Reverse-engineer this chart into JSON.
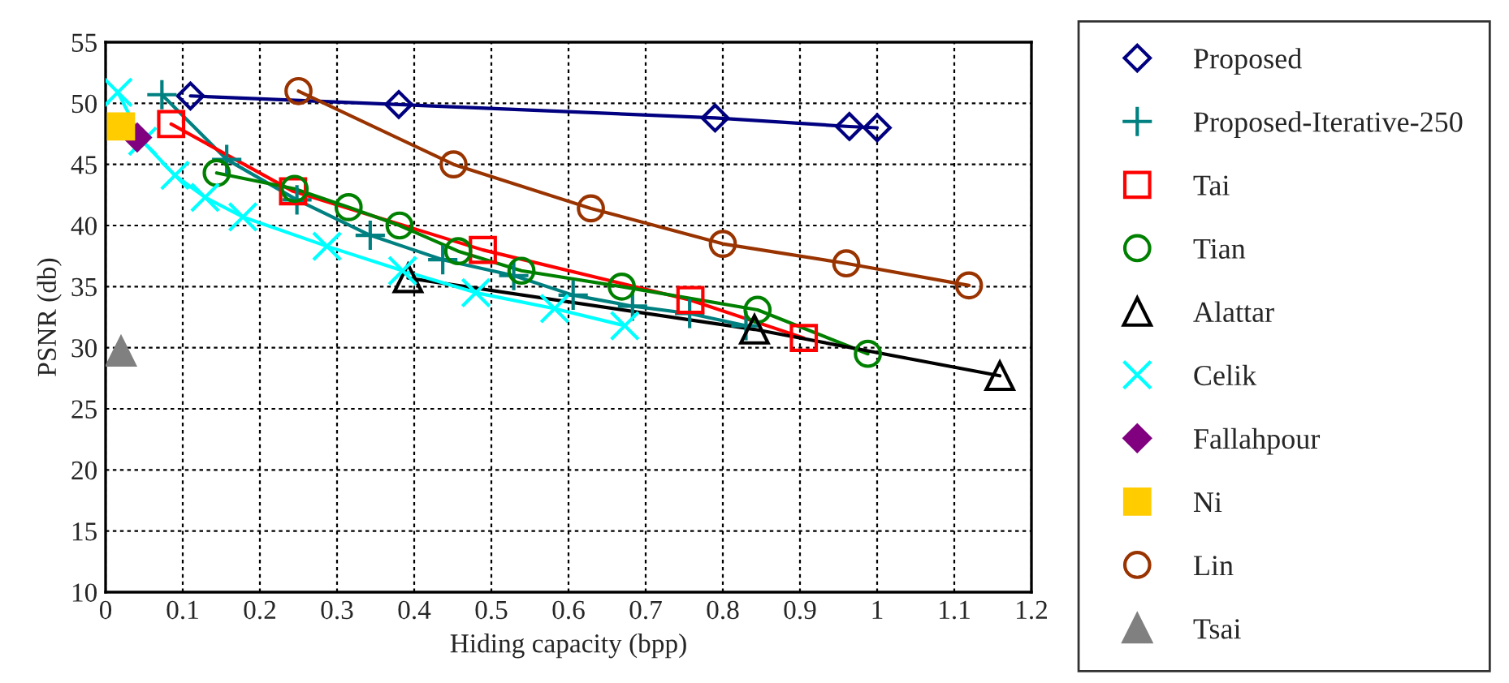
{
  "chart_data": {
    "type": "line",
    "xlabel": "Hiding capacity (bpp)",
    "ylabel": "PSNR (db)",
    "xlim": [
      0,
      1.2
    ],
    "ylim": [
      10,
      55
    ],
    "xticks": [
      0,
      0.1,
      0.2,
      0.3,
      0.4,
      0.5,
      0.6,
      0.7,
      0.8,
      0.9,
      1,
      1.1,
      1.2
    ],
    "yticks": [
      10,
      15,
      20,
      25,
      30,
      35,
      40,
      45,
      50,
      55
    ],
    "grid": true,
    "legend": "right",
    "line_style": "solid",
    "series": [
      {
        "name": "Proposed",
        "color": "#000080",
        "marker": "diamond",
        "x": [
          0.11,
          0.38,
          0.79,
          0.964,
          1.0
        ],
        "values": [
          50.6,
          49.9,
          48.8,
          48.1,
          48.0
        ]
      },
      {
        "name": "Proposed-Iterative-250",
        "color": "#008080",
        "marker": "plus",
        "x": [
          0.073,
          0.157,
          0.248,
          0.343,
          0.437,
          0.529,
          0.606,
          0.683,
          0.757,
          0.83
        ],
        "values": [
          50.7,
          45.4,
          42.1,
          39.2,
          37.2,
          35.9,
          34.3,
          33.4,
          32.8,
          31.8
        ]
      },
      {
        "name": "Tai",
        "color": "#ff0000",
        "marker": "square",
        "x": [
          0.085,
          0.243,
          0.489,
          0.758,
          0.905
        ],
        "values": [
          48.3,
          42.8,
          38.0,
          33.9,
          30.8
        ]
      },
      {
        "name": "Tian",
        "color": "#008000",
        "marker": "circle",
        "x": [
          0.144,
          0.245,
          0.315,
          0.381,
          0.457,
          0.539,
          0.669,
          0.845,
          0.988
        ],
        "values": [
          44.3,
          43.0,
          41.5,
          40.0,
          37.9,
          36.3,
          35.0,
          33.1,
          29.5
        ]
      },
      {
        "name": "Alattar",
        "color": "#000000",
        "marker": "triangle",
        "x": [
          0.392,
          0.841,
          1.159
        ],
        "values": [
          35.7,
          31.5,
          27.7
        ]
      },
      {
        "name": "Celik",
        "color": "#00ffff",
        "marker": "cross",
        "x": [
          0.016,
          0.048,
          0.09,
          0.129,
          0.178,
          0.287,
          0.385,
          0.48,
          0.582,
          0.673
        ],
        "values": [
          50.9,
          46.9,
          44.1,
          42.3,
          40.7,
          38.3,
          36.3,
          34.5,
          33.2,
          31.8
        ]
      },
      {
        "name": "Fallahpour",
        "type": "scatter",
        "color": "#800080",
        "marker": "diamond",
        "x": [
          0.041
        ],
        "values": [
          47.2
        ]
      },
      {
        "name": "Ni",
        "type": "scatter",
        "color": "#ffcc00",
        "marker": "square",
        "x": [
          0.02
        ],
        "values": [
          48.1
        ]
      },
      {
        "name": "Lin",
        "color": "#993300",
        "marker": "circle",
        "x": [
          0.25,
          0.451,
          0.629,
          0.8,
          0.96,
          1.119
        ],
        "values": [
          51.0,
          45.0,
          41.4,
          38.5,
          36.9,
          35.1
        ]
      },
      {
        "name": "Tsai",
        "type": "scatter",
        "color": "#808080",
        "marker": "triangle",
        "x": [
          0.02
        ],
        "values": [
          29.7
        ]
      }
    ]
  }
}
